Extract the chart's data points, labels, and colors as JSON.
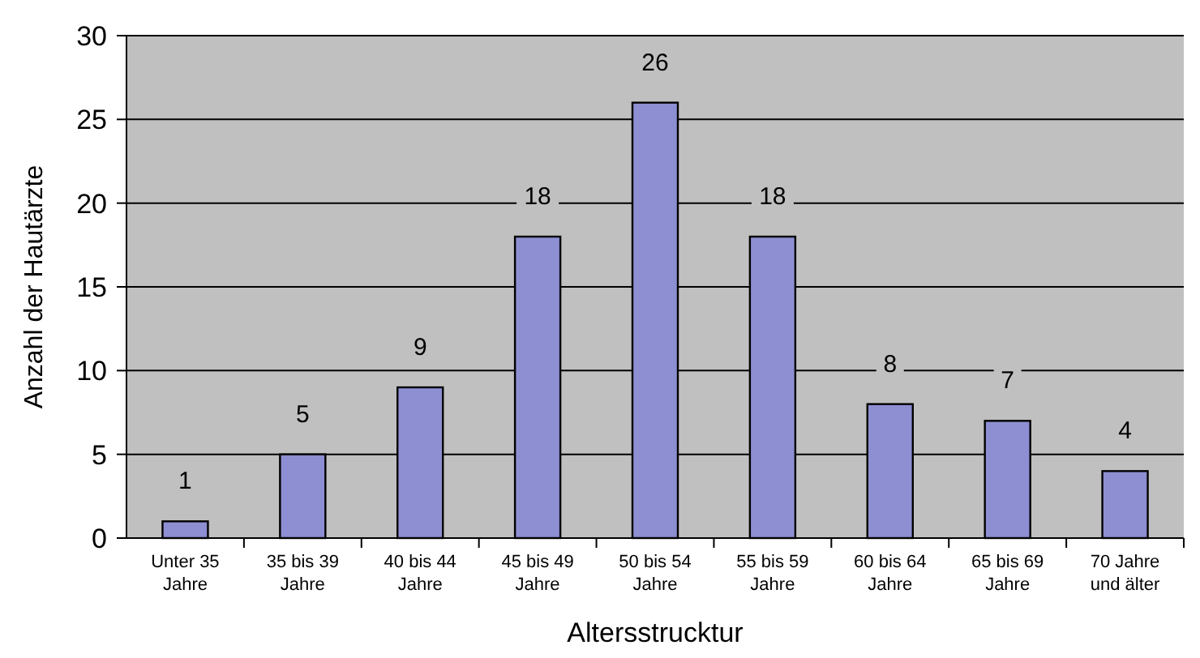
{
  "chart_data": {
    "type": "bar",
    "xlabel": "Altersstrucktur",
    "ylabel": "Anzahl der Hautärzte",
    "categories": [
      "Unter 35 Jahre",
      "35 bis 39 Jahre",
      "40 bis 44 Jahre",
      "45 bis 49 Jahre",
      "50 bis 54 Jahre",
      "55 bis 59 Jahre",
      "60 bis 64 Jahre",
      "65 bis 69 Jahre",
      "70 Jahre und älter"
    ],
    "values": [
      1,
      5,
      9,
      18,
      26,
      18,
      8,
      7,
      4
    ],
    "color": "#8e8ed2",
    "ylim": [
      0,
      30
    ],
    "yticks": [
      0,
      5,
      10,
      15,
      20,
      25,
      30
    ],
    "grid": "y",
    "data_labels": true
  }
}
